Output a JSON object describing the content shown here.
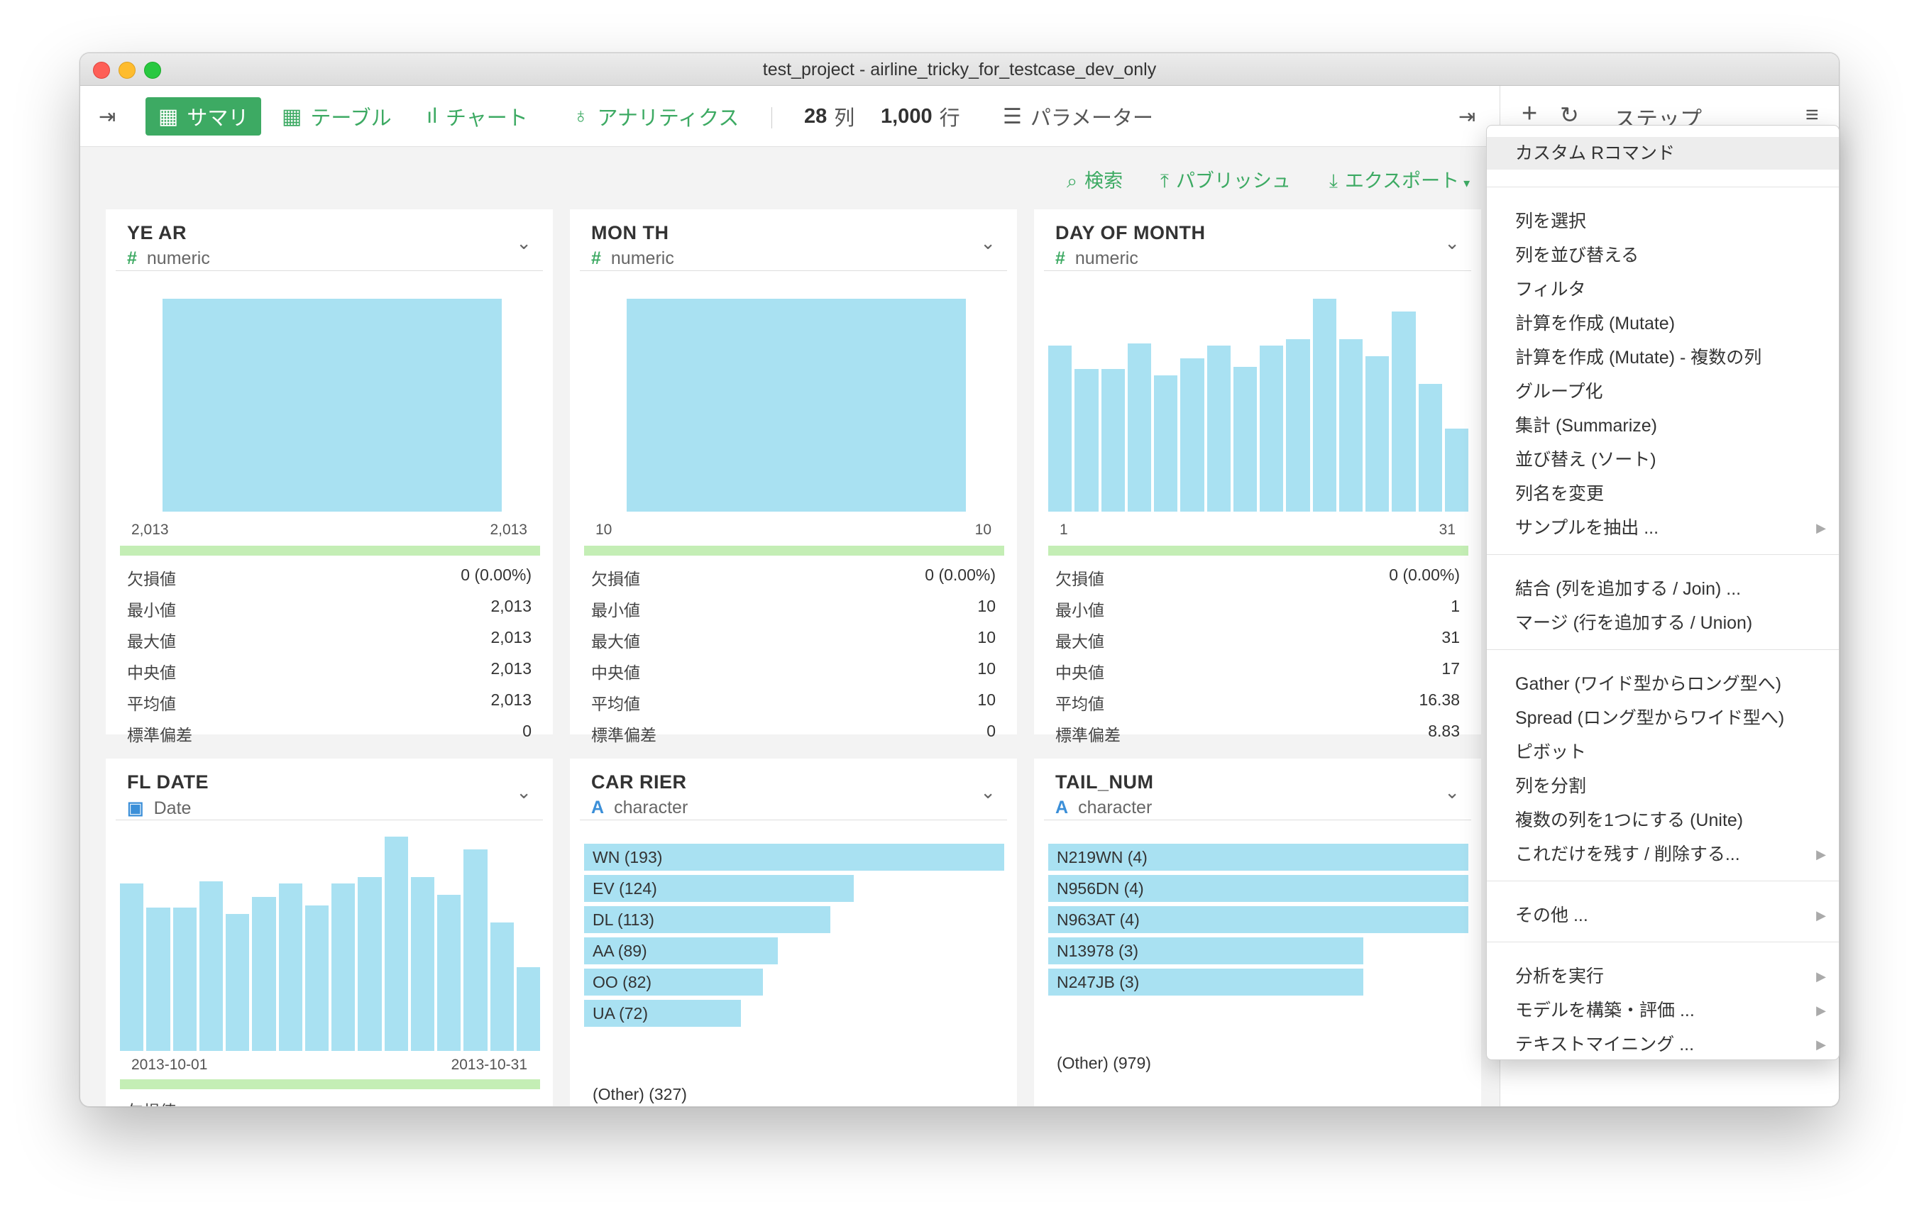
{
  "window": {
    "title": "test_project - airline_tricky_for_testcase_dev_only"
  },
  "toolbar": {
    "tabs": [
      {
        "label": "サマリ",
        "icon": "grid-icon"
      },
      {
        "label": "テーブル",
        "icon": "table-icon"
      },
      {
        "label": "チャート",
        "icon": "bar-chart-icon"
      },
      {
        "label": "アナリティクス",
        "icon": "lightbulb-icon"
      }
    ],
    "cols_count": "28",
    "cols_label": "列",
    "rows_count": "1,000",
    "rows_label": "行",
    "params_label": "パラメーター"
  },
  "subbar": {
    "search": "検索",
    "publish": "パブリッシュ",
    "export": "エクスポート"
  },
  "right_panel": {
    "title": "ステップ"
  },
  "stat_labels": {
    "missing": "欠損値",
    "min": "最小値",
    "max": "最大値",
    "median": "中央値",
    "mean": "平均値",
    "sd": "標準偏差"
  },
  "cards": [
    {
      "name": "YE AR",
      "type": "numeric",
      "axis_min": "2,013",
      "axis_max": "2,013",
      "stats": {
        "missing": "0 (0.00%)",
        "min": "2,013",
        "max": "2,013",
        "median": "2,013",
        "mean": "2,013",
        "sd": "0"
      }
    },
    {
      "name": "MON TH",
      "type": "numeric",
      "axis_min": "10",
      "axis_max": "10",
      "stats": {
        "missing": "0 (0.00%)",
        "min": "10",
        "max": "10",
        "median": "10",
        "mean": "10",
        "sd": "0"
      }
    },
    {
      "name": "DAY OF MONTH",
      "type": "numeric",
      "axis_min": "1",
      "axis_max": "31",
      "histogram": [
        0.78,
        0.67,
        0.67,
        0.79,
        0.64,
        0.72,
        0.78,
        0.68,
        0.78,
        0.81,
        1.0,
        0.81,
        0.73,
        0.94,
        0.6,
        0.39
      ],
      "stats": {
        "missing": "0 (0.00%)",
        "min": "1",
        "max": "31",
        "median": "17",
        "mean": "16.38",
        "sd": "8.83"
      }
    },
    {
      "name": "FL DATE",
      "type": "Date",
      "axis_min": "2013-10-01",
      "axis_max": "2013-10-31",
      "histogram": [
        0.78,
        0.67,
        0.67,
        0.79,
        0.64,
        0.72,
        0.78,
        0.68,
        0.78,
        0.81,
        1.0,
        0.81,
        0.73,
        0.94,
        0.6,
        0.39
      ],
      "stats": {
        "missing": "欠損値"
      }
    },
    {
      "name": "CAR RIER",
      "type": "character",
      "top_values": [
        {
          "label": "WN (193)",
          "count": 193
        },
        {
          "label": "EV (124)",
          "count": 124
        },
        {
          "label": "DL (113)",
          "count": 113
        },
        {
          "label": "AA (89)",
          "count": 89
        },
        {
          "label": "OO (82)",
          "count": 82
        },
        {
          "label": "UA (72)",
          "count": 72
        }
      ],
      "other": "(Other) (327)"
    },
    {
      "name": "TAIL_NUM",
      "type": "character",
      "top_values": [
        {
          "label": "N219WN (4)",
          "count": 4
        },
        {
          "label": "N956DN (4)",
          "count": 4
        },
        {
          "label": "N963AT (4)",
          "count": 4
        },
        {
          "label": "N13978 (3)",
          "count": 3
        },
        {
          "label": "N247JB (3)",
          "count": 3
        }
      ],
      "other": "(Other) (979)"
    }
  ],
  "menu": {
    "groups": [
      [
        {
          "label": "カスタム Rコマンド",
          "sub": false
        }
      ],
      [
        {
          "label": "列を選択",
          "sub": false
        },
        {
          "label": "列を並び替える",
          "sub": false
        },
        {
          "label": "フィルタ",
          "sub": false
        },
        {
          "label": "計算を作成 (Mutate)",
          "sub": false
        },
        {
          "label": "計算を作成 (Mutate) - 複数の列",
          "sub": false
        },
        {
          "label": "グループ化",
          "sub": false
        },
        {
          "label": "集計 (Summarize)",
          "sub": false
        },
        {
          "label": "並び替え (ソート)",
          "sub": false
        },
        {
          "label": "列名を変更",
          "sub": false
        },
        {
          "label": "サンプルを抽出 ...",
          "sub": true
        }
      ],
      [
        {
          "label": "結合 (列を追加する / Join) ...",
          "sub": false
        },
        {
          "label": "マージ (行を追加する / Union)",
          "sub": false
        }
      ],
      [
        {
          "label": "Gather (ワイド型からロング型へ)",
          "sub": false
        },
        {
          "label": "Spread (ロング型からワイド型へ)",
          "sub": false
        },
        {
          "label": "ピボット",
          "sub": false
        },
        {
          "label": "列を分割",
          "sub": false
        },
        {
          "label": "複数の列を1つにする (Unite)",
          "sub": false
        },
        {
          "label": "これだけを残す / 削除する...",
          "sub": true
        }
      ],
      [
        {
          "label": "その他 ...",
          "sub": true
        }
      ],
      [
        {
          "label": "分析を実行",
          "sub": true
        },
        {
          "label": "モデルを構築・評価 ...",
          "sub": true
        },
        {
          "label": "テキストマイニング ...",
          "sub": true
        }
      ]
    ]
  }
}
